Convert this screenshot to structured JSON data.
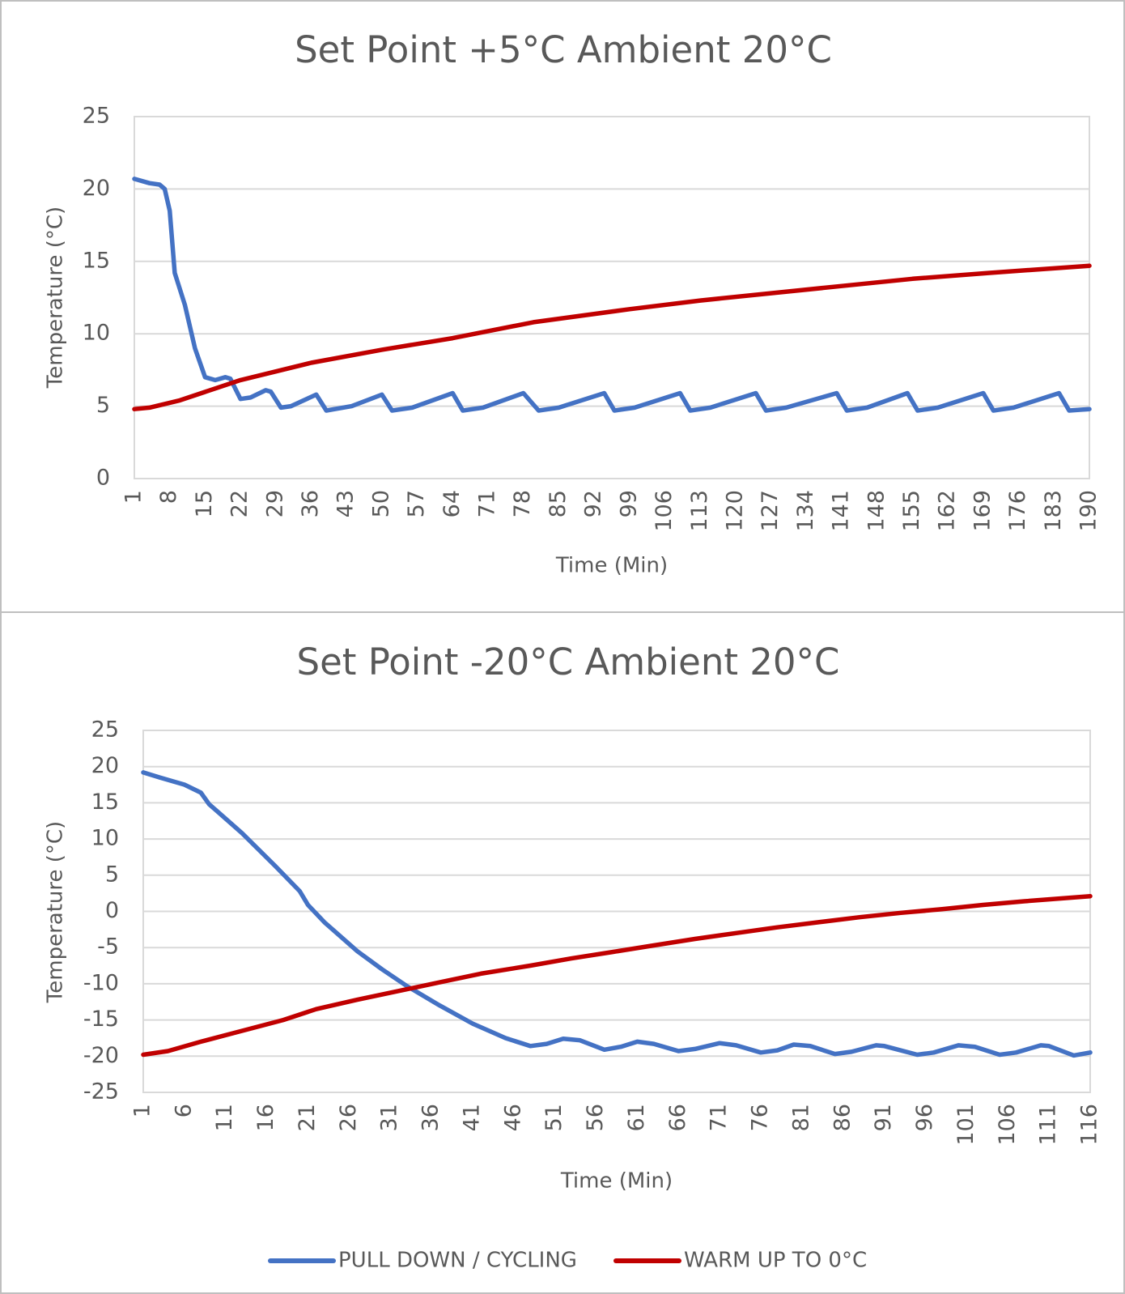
{
  "chart_data": [
    {
      "type": "line",
      "title": "Set Point +5°C Ambient 20°C",
      "xlabel": "Time (Min)",
      "ylabel": "Temperature (°C)",
      "xlim": [
        1,
        190
      ],
      "xticks": [
        1,
        8,
        15,
        22,
        29,
        36,
        43,
        50,
        57,
        64,
        71,
        78,
        85,
        92,
        99,
        106,
        113,
        120,
        127,
        134,
        141,
        148,
        155,
        162,
        169,
        176,
        183,
        190
      ],
      "ylim": [
        0,
        25
      ],
      "yticks": [
        0,
        5,
        10,
        15,
        20,
        25
      ],
      "grid": true,
      "series": [
        {
          "color": "#4472c4",
          "x": [
            1,
            4,
            6,
            7,
            8,
            9,
            11,
            13,
            15,
            17,
            19,
            20,
            22,
            24,
            27,
            28,
            30,
            32,
            37,
            39,
            44,
            50,
            52,
            56,
            64,
            66,
            70,
            78,
            81,
            85,
            94,
            96,
            100,
            109,
            111,
            115,
            124,
            126,
            130,
            140,
            142,
            146,
            154,
            156,
            160,
            169,
            171,
            175,
            184,
            186,
            190
          ],
          "values": [
            20.7,
            20.4,
            20.3,
            20,
            18.5,
            14.2,
            12,
            9,
            7,
            6.8,
            7,
            6.9,
            5.5,
            5.6,
            6.1,
            6.0,
            4.9,
            5.0,
            5.8,
            4.7,
            5.0,
            5.8,
            4.7,
            4.9,
            5.9,
            4.7,
            4.9,
            5.9,
            4.7,
            4.9,
            5.9,
            4.7,
            4.9,
            5.9,
            4.7,
            4.9,
            5.9,
            4.7,
            4.9,
            5.9,
            4.7,
            4.9,
            5.9,
            4.7,
            4.9,
            5.9,
            4.7,
            4.9,
            5.9,
            4.7,
            4.8
          ]
        },
        {
          "color": "#c00000",
          "x": [
            1,
            4,
            10,
            22,
            36,
            50,
            64,
            80,
            99,
            113,
            127,
            141,
            155,
            170,
            190
          ],
          "values": [
            4.8,
            4.9,
            5.4,
            6.8,
            8.0,
            8.9,
            9.7,
            10.8,
            11.7,
            12.3,
            12.8,
            13.3,
            13.8,
            14.2,
            14.7
          ]
        }
      ]
    },
    {
      "type": "line",
      "title": "Set Point -20°C Ambient 20°C",
      "xlabel": "Time (Min)",
      "ylabel": "Temperature (°C)",
      "xlim": [
        1,
        116
      ],
      "xticks": [
        1,
        6,
        11,
        16,
        21,
        26,
        31,
        36,
        41,
        46,
        51,
        56,
        61,
        66,
        71,
        76,
        81,
        86,
        91,
        96,
        101,
        106,
        111,
        116
      ],
      "ylim": [
        -25,
        25
      ],
      "yticks": [
        -25,
        -20,
        -15,
        -10,
        -5,
        0,
        5,
        10,
        15,
        20,
        25
      ],
      "grid": true,
      "legend": "bottom",
      "series": [
        {
          "name": "PULL DOWN / CYCLING",
          "color": "#4472c4",
          "x": [
            1,
            3,
            6,
            8,
            9,
            10,
            13,
            17,
            20,
            21,
            23,
            27,
            30,
            33,
            37,
            41,
            45,
            48,
            50,
            52,
            54,
            57,
            59,
            61,
            63,
            66,
            68,
            71,
            73,
            76,
            78,
            80,
            82,
            85,
            87,
            90,
            91,
            95,
            97,
            100,
            102,
            105,
            107,
            110,
            111,
            114,
            116
          ],
          "values": [
            19.2,
            18.5,
            17.5,
            16.4,
            14.8,
            13.8,
            10.8,
            6.3,
            2.8,
            0.9,
            -1.5,
            -5.5,
            -8.0,
            -10.3,
            -13,
            -15.5,
            -17.5,
            -18.6,
            -18.3,
            -17.6,
            -17.8,
            -19.1,
            -18.7,
            -18.0,
            -18.3,
            -19.3,
            -19.0,
            -18.2,
            -18.5,
            -19.5,
            -19.2,
            -18.4,
            -18.6,
            -19.7,
            -19.4,
            -18.5,
            -18.6,
            -19.8,
            -19.5,
            -18.5,
            -18.7,
            -19.8,
            -19.5,
            -18.5,
            -18.6,
            -19.9,
            -19.5
          ]
        },
        {
          "name": "WARM UP TO 0°C",
          "color": "#c00000",
          "x": [
            1,
            4,
            8,
            13,
            18,
            22,
            27,
            32,
            37,
            42,
            48,
            53,
            58,
            63,
            68,
            73,
            78,
            83,
            88,
            93,
            98,
            103,
            108,
            116
          ],
          "values": [
            -19.8,
            -19.3,
            -18.0,
            -16.5,
            -15.0,
            -13.5,
            -12.2,
            -11.0,
            -9.8,
            -8.6,
            -7.5,
            -6.5,
            -5.6,
            -4.7,
            -3.8,
            -3.0,
            -2.2,
            -1.5,
            -0.8,
            -0.2,
            0.3,
            0.9,
            1.4,
            2.1
          ]
        }
      ]
    }
  ]
}
